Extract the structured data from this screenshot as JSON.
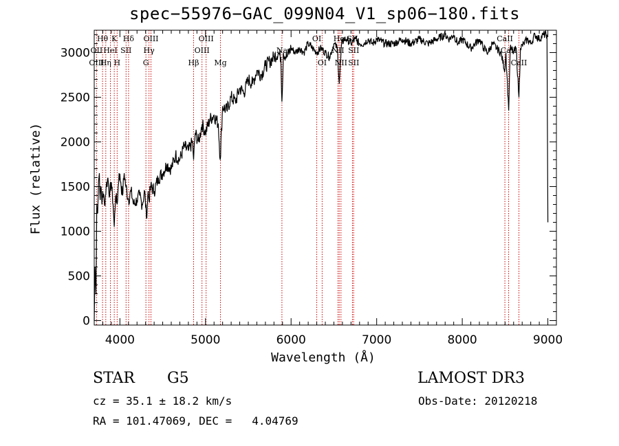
{
  "header": {
    "title": "spec−55976−GAC_099N04_V1_sp06−180.fits"
  },
  "chart_data": {
    "type": "line",
    "title": "spec−55976−GAC_099N04_V1_sp06−180.fits",
    "xlabel": "Wavelength (Å)",
    "ylabel": "Flux (relative)",
    "xlim": [
      3700,
      9100
    ],
    "ylim": [
      -50,
      3250
    ],
    "xticks": [
      4000,
      5000,
      6000,
      7000,
      8000,
      9000
    ],
    "yticks": [
      0,
      500,
      1000,
      1500,
      2000,
      2500,
      3000
    ],
    "grid": false,
    "series": [
      {
        "name": "flux",
        "x": [
          3700,
          3710,
          3720,
          3730,
          3740,
          3750,
          3760,
          3770,
          3780,
          3790,
          3800,
          3820,
          3840,
          3860,
          3880,
          3900,
          3920,
          3934,
          3950,
          3968,
          3990,
          4010,
          4030,
          4050,
          4070,
          4101,
          4130,
          4160,
          4200,
          4230,
          4260,
          4290,
          4310,
          4330,
          4340,
          4360,
          4400,
          4450,
          4500,
          4550,
          4600,
          4650,
          4700,
          4750,
          4800,
          4850,
          4861,
          4880,
          4920,
          4960,
          5000,
          5050,
          5100,
          5150,
          5172,
          5200,
          5250,
          5300,
          5350,
          5400,
          5450,
          5500,
          5550,
          5600,
          5650,
          5700,
          5750,
          5800,
          5850,
          5880,
          5893,
          5910,
          5950,
          6000,
          6050,
          6100,
          6150,
          6200,
          6250,
          6300,
          6350,
          6400,
          6450,
          6500,
          6540,
          6563,
          6590,
          6620,
          6650,
          6700,
          6750,
          6800,
          6850,
          6900,
          6950,
          7000,
          7100,
          7200,
          7300,
          7400,
          7500,
          7600,
          7700,
          7800,
          7850,
          7900,
          7950,
          8000,
          8050,
          8100,
          8150,
          8200,
          8250,
          8300,
          8350,
          8400,
          8450,
          8498,
          8510,
          8542,
          8560,
          8600,
          8630,
          8662,
          8680,
          8720,
          8760,
          8800,
          8850,
          8900,
          8950,
          8990,
          9000
        ],
        "values": [
          0,
          600,
          300,
          1300,
          1200,
          1550,
          1650,
          1350,
          1500,
          1300,
          1450,
          1300,
          1500,
          1600,
          1400,
          1550,
          1300,
          1050,
          1400,
          1300,
          1650,
          1550,
          1400,
          1650,
          1500,
          1350,
          1450,
          1300,
          1350,
          1400,
          1300,
          1450,
          1150,
          1450,
          1350,
          1500,
          1450,
          1600,
          1650,
          1750,
          1700,
          1850,
          1800,
          1950,
          1900,
          2000,
          1800,
          2100,
          2000,
          2200,
          2100,
          2250,
          2300,
          2200,
          1800,
          2400,
          2350,
          2500,
          2450,
          2600,
          2550,
          2700,
          2650,
          2800,
          2750,
          2850,
          2900,
          2950,
          3000,
          2950,
          2450,
          3000,
          2950,
          3050,
          3000,
          3050,
          3000,
          3100,
          3050,
          3000,
          3050,
          3000,
          2950,
          3100,
          3050,
          2650,
          3100,
          3150,
          3150,
          3100,
          3150,
          3100,
          3100,
          3150,
          3100,
          3150,
          3100,
          3100,
          3150,
          3100,
          3150,
          3100,
          3150,
          3200,
          3150,
          3200,
          3100,
          3150,
          3100,
          3050,
          3100,
          3150,
          3050,
          3000,
          3100,
          3050,
          3000,
          2800,
          3000,
          2350,
          3050,
          3000,
          3050,
          2500,
          3050,
          3100,
          3150,
          3100,
          3200,
          3150,
          3200,
          3200,
          1100
        ]
      }
    ],
    "spectral_lines": [
      {
        "name": "Hθ",
        "x": 3797,
        "row": 0
      },
      {
        "name": "OII",
        "x": 3727,
        "row": 1
      },
      {
        "name": "OIII",
        "x": 3727,
        "row": 2
      },
      {
        "name": "Hη",
        "x": 3835,
        "row": 2
      },
      {
        "name": "K",
        "x": 3934,
        "row": 0
      },
      {
        "name": "HeI",
        "x": 3889,
        "row": 1
      },
      {
        "name": "H",
        "x": 3968,
        "row": 2
      },
      {
        "name": "SII",
        "x": 4072,
        "row": 1
      },
      {
        "name": "Hδ",
        "x": 4101,
        "row": 0
      },
      {
        "name": "OIII",
        "x": 4363,
        "row": 0
      },
      {
        "name": "Hγ",
        "x": 4340,
        "row": 1
      },
      {
        "name": "G",
        "x": 4304,
        "row": 2
      },
      {
        "name": "Hβ",
        "x": 4861,
        "row": 2
      },
      {
        "name": "OIII",
        "x": 5007,
        "row": 0
      },
      {
        "name": "OIII",
        "x": 4959,
        "row": 1
      },
      {
        "name": "Mg",
        "x": 5175,
        "row": 2
      },
      {
        "name": "Na",
        "x": 5893,
        "row": 1
      },
      {
        "name": "OI",
        "x": 6300,
        "row": 0
      },
      {
        "name": "OI",
        "x": 6363,
        "row": 2
      },
      {
        "name": "Hα",
        "x": 6563,
        "row": 0
      },
      {
        "name": "NII",
        "x": 6548,
        "row": 1
      },
      {
        "name": "NII",
        "x": 6583,
        "row": 2
      },
      {
        "name": "SII",
        "x": 6717,
        "row": 0
      },
      {
        "name": "SII",
        "x": 6731,
        "row": 1
      },
      {
        "name": "SII",
        "x": 6731,
        "row": 2
      },
      {
        "name": "CaII",
        "x": 8498,
        "row": 0
      },
      {
        "name": "CaII",
        "x": 8542,
        "row": 1
      },
      {
        "name": "CaII",
        "x": 8662,
        "row": 2
      }
    ]
  },
  "info": {
    "object_class": "STAR",
    "subclass": "G5",
    "survey": "LAMOST DR3",
    "cz": "cz = 35.1 ± 18.2 km/s",
    "obs_date": "Obs-Date: 20120218",
    "coords": "RA = 101.47069, DEC =   4.04769"
  },
  "colors": {
    "spectrum": "#000000",
    "marker_line": "#cc0000",
    "axis": "#000000"
  }
}
